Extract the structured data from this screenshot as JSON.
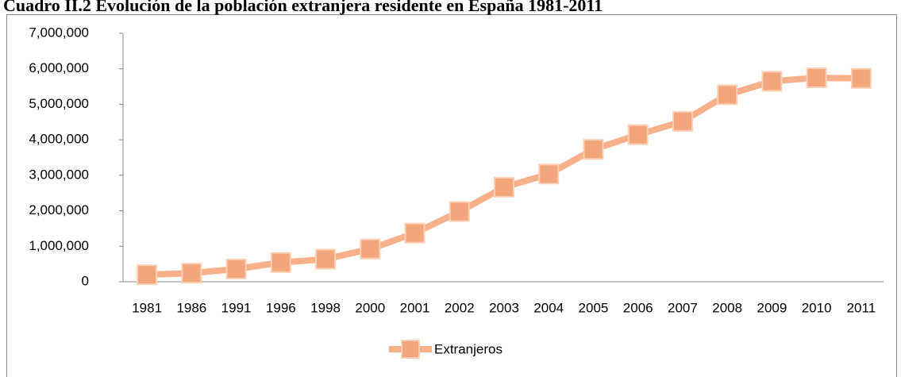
{
  "chart_data": {
    "type": "line",
    "title": "Cuadro II.2 Evolución de la población extranjera residente en España 1981-2011",
    "categories": [
      "1981",
      "1986",
      "1991",
      "1996",
      "1998",
      "2000",
      "2001",
      "2002",
      "2003",
      "2004",
      "2005",
      "2006",
      "2007",
      "2008",
      "2009",
      "2010",
      "2011"
    ],
    "series": [
      {
        "name": "Extranjeros",
        "color": "#f7b08a",
        "values": [
          198042,
          241971,
          360655,
          542314,
          637085,
          923879,
          1370657,
          1977946,
          2664168,
          3034326,
          3730610,
          4144166,
          4519554,
          5268762,
          5648671,
          5747734,
          5730667
        ]
      }
    ],
    "ylim": [
      0,
      7000000
    ],
    "yticks": [
      0,
      {
        "value": 1000000,
        "label": "1,000,000"
      },
      {
        "value": 2000000,
        "label": "2,000,000"
      },
      {
        "value": 3000000,
        "label": "3,000,000"
      },
      {
        "value": 4000000,
        "label": "4,000,000"
      },
      {
        "value": 5000000,
        "label": "5,000,000"
      },
      {
        "value": 6000000,
        "label": "6,000,000"
      },
      {
        "value": 7000000,
        "label": "7,000,000"
      }
    ],
    "grid": false,
    "legend": "bottom"
  }
}
